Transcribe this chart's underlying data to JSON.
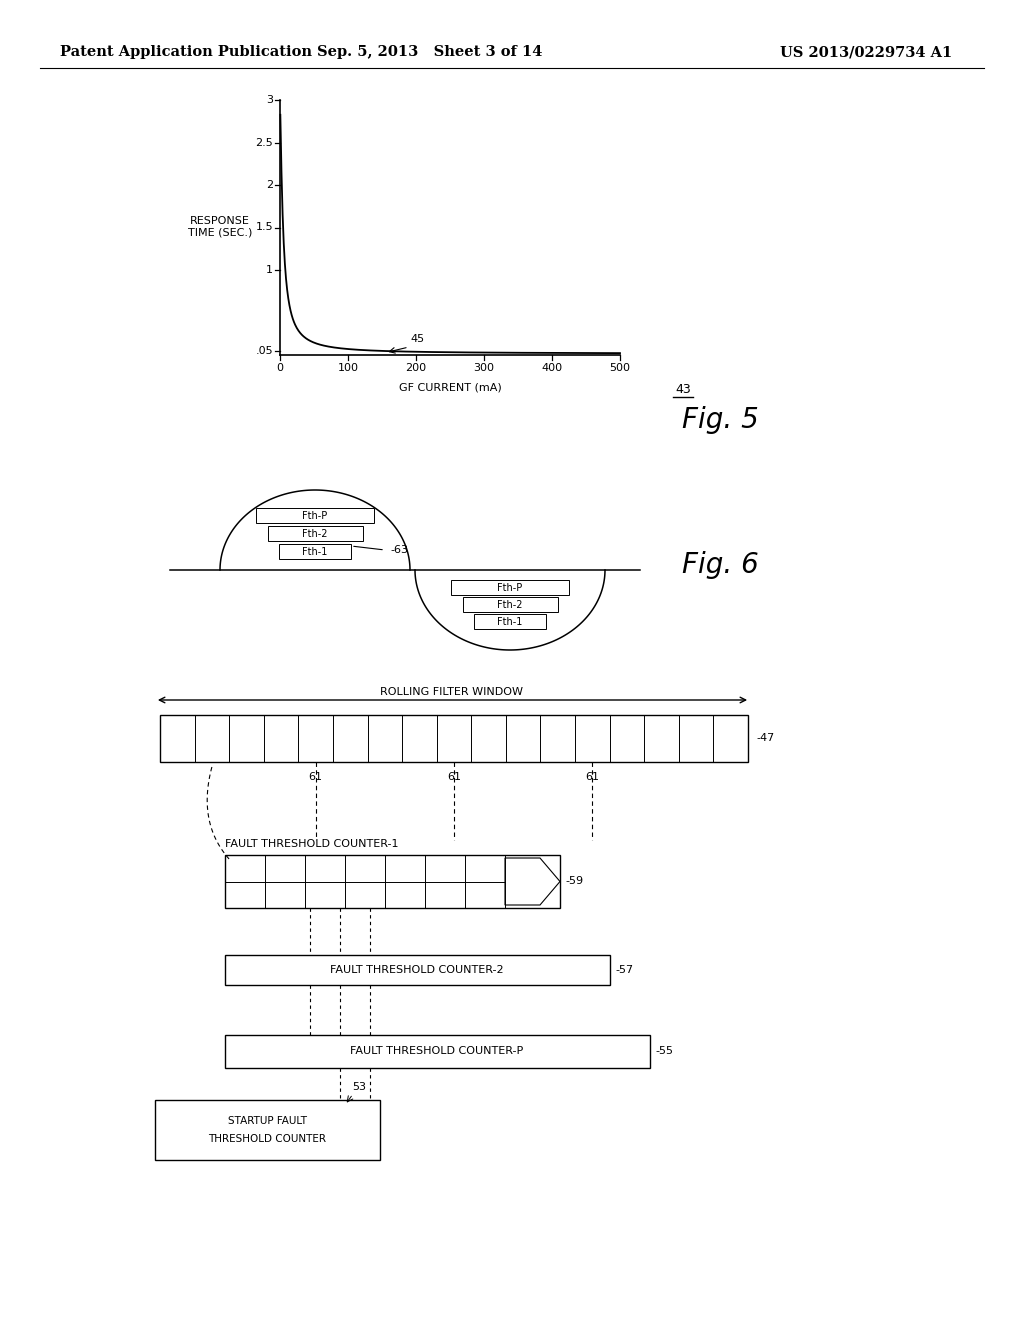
{
  "bg_color": "#ffffff",
  "header_left": "Patent Application Publication",
  "header_mid": "Sep. 5, 2013   Sheet 3 of 14",
  "header_right": "US 2013/0229734 A1",
  "fig5_label": "Fig. 5",
  "fig6_label": "Fig. 6",
  "graph_ylabel": "RESPONSE\nTIME (SEC.)",
  "graph_xlabel": "GF CURRENT (mA)",
  "graph_ref": "43",
  "curve_label": "45",
  "rolling_window_label": "ROLLING FILTER WINDOW",
  "ref47": "47",
  "ref61": "61",
  "fault_counter1_label": "FAULT THRESHOLD COUNTER-1",
  "ref59": "59",
  "fault_counter2_label": "FAULT THRESHOLD COUNTER-2",
  "ref57": "57",
  "fault_counterP_label": "FAULT THRESHOLD COUNTER-P",
  "ref55": "55",
  "startup_label1": "STARTUP FAULT",
  "startup_label2": "THRESHOLD COUNTER",
  "ref53": "53",
  "fth_labels_top": [
    "Fth-1",
    "Fth-2",
    "Fth-P"
  ],
  "fth_labels_bottom": [
    "Fth-P",
    "Fth-2",
    "Fth-1"
  ],
  "ref63": "63"
}
